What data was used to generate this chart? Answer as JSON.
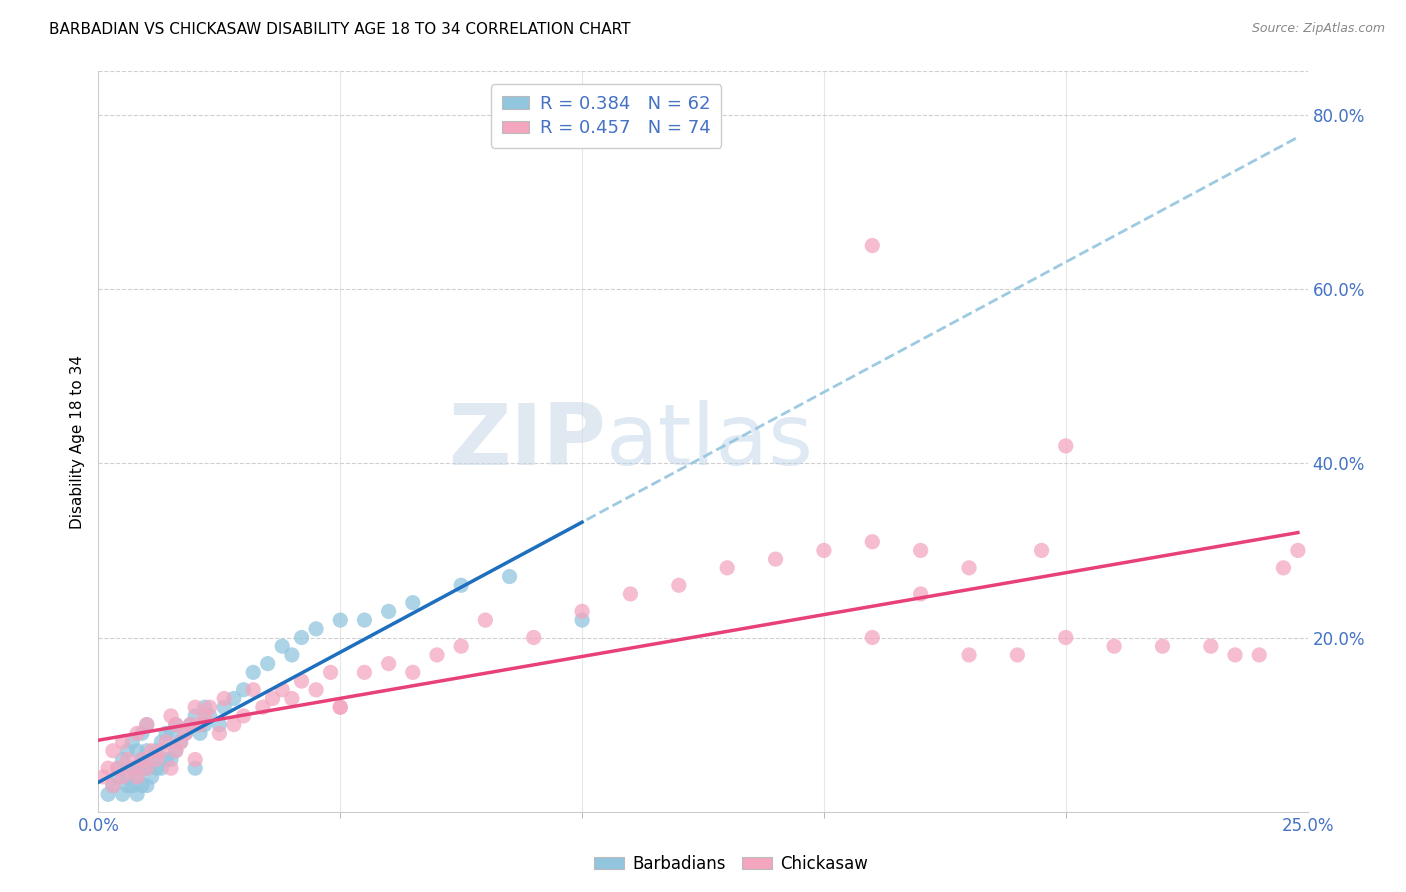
{
  "title": "BARBADIAN VS CHICKASAW DISABILITY AGE 18 TO 34 CORRELATION CHART",
  "source": "Source: ZipAtlas.com",
  "ylabel": "Disability Age 18 to 34",
  "watermark_zip": "ZIP",
  "watermark_atlas": "atlas",
  "xlim": [
    0.0,
    0.25
  ],
  "ylim": [
    0.0,
    0.85
  ],
  "ytick_vals": [
    0.2,
    0.4,
    0.6,
    0.8
  ],
  "ytick_labels": [
    "20.0%",
    "40.0%",
    "60.0%",
    "80.0%"
  ],
  "xtick_vals": [
    0.0,
    0.25
  ],
  "xtick_labels": [
    "0.0%",
    "25.0%"
  ],
  "xtick_minor_vals": [
    0.05,
    0.1,
    0.15,
    0.2
  ],
  "legend_r_barbadian": "0.384",
  "legend_n_barbadian": "62",
  "legend_r_chickasaw": "0.457",
  "legend_n_chickasaw": "74",
  "barbadian_color": "#92c5de",
  "chickasaw_color": "#f4a6bf",
  "barbadian_line_color": "#1f6fbf",
  "chickasaw_line_color": "#e8417a",
  "dashed_line_color": "#92c5de",
  "tick_color": "#4472c4",
  "background_color": "#ffffff",
  "grid_color": "#d0d0d0",
  "barb_x": [
    0.002,
    0.003,
    0.004,
    0.004,
    0.005,
    0.005,
    0.006,
    0.006,
    0.006,
    0.007,
    0.007,
    0.007,
    0.008,
    0.008,
    0.008,
    0.008,
    0.009,
    0.009,
    0.009,
    0.009,
    0.01,
    0.01,
    0.01,
    0.01,
    0.011,
    0.011,
    0.012,
    0.012,
    0.013,
    0.013,
    0.014,
    0.014,
    0.015,
    0.015,
    0.016,
    0.016,
    0.017,
    0.018,
    0.019,
    0.02,
    0.02,
    0.021,
    0.022,
    0.022,
    0.023,
    0.025,
    0.026,
    0.028,
    0.03,
    0.032,
    0.035,
    0.038,
    0.04,
    0.042,
    0.045,
    0.05,
    0.055,
    0.06,
    0.065,
    0.075,
    0.085,
    0.1
  ],
  "barb_y": [
    0.02,
    0.03,
    0.04,
    0.05,
    0.02,
    0.06,
    0.03,
    0.04,
    0.07,
    0.03,
    0.05,
    0.08,
    0.02,
    0.04,
    0.05,
    0.07,
    0.03,
    0.05,
    0.06,
    0.09,
    0.03,
    0.05,
    0.07,
    0.1,
    0.04,
    0.06,
    0.05,
    0.07,
    0.05,
    0.08,
    0.06,
    0.09,
    0.06,
    0.09,
    0.07,
    0.1,
    0.08,
    0.09,
    0.1,
    0.05,
    0.11,
    0.09,
    0.1,
    0.12,
    0.11,
    0.1,
    0.12,
    0.13,
    0.14,
    0.16,
    0.17,
    0.19,
    0.18,
    0.2,
    0.21,
    0.22,
    0.22,
    0.23,
    0.24,
    0.26,
    0.27,
    0.22
  ],
  "chick_x": [
    0.001,
    0.002,
    0.003,
    0.003,
    0.004,
    0.005,
    0.005,
    0.006,
    0.007,
    0.008,
    0.008,
    0.009,
    0.01,
    0.01,
    0.011,
    0.012,
    0.013,
    0.014,
    0.015,
    0.015,
    0.016,
    0.016,
    0.017,
    0.018,
    0.019,
    0.02,
    0.02,
    0.021,
    0.022,
    0.023,
    0.025,
    0.026,
    0.028,
    0.03,
    0.032,
    0.034,
    0.036,
    0.038,
    0.04,
    0.042,
    0.045,
    0.048,
    0.05,
    0.055,
    0.06,
    0.065,
    0.07,
    0.075,
    0.08,
    0.09,
    0.1,
    0.11,
    0.12,
    0.13,
    0.14,
    0.15,
    0.16,
    0.17,
    0.18,
    0.195,
    0.2,
    0.21,
    0.22,
    0.23,
    0.235,
    0.24,
    0.245,
    0.248,
    0.2,
    0.16,
    0.17,
    0.18,
    0.19,
    0.05
  ],
  "chick_y": [
    0.04,
    0.05,
    0.03,
    0.07,
    0.05,
    0.04,
    0.08,
    0.06,
    0.05,
    0.04,
    0.09,
    0.06,
    0.05,
    0.1,
    0.07,
    0.06,
    0.07,
    0.08,
    0.05,
    0.11,
    0.07,
    0.1,
    0.08,
    0.09,
    0.1,
    0.06,
    0.12,
    0.1,
    0.11,
    0.12,
    0.09,
    0.13,
    0.1,
    0.11,
    0.14,
    0.12,
    0.13,
    0.14,
    0.13,
    0.15,
    0.14,
    0.16,
    0.12,
    0.16,
    0.17,
    0.16,
    0.18,
    0.19,
    0.22,
    0.2,
    0.23,
    0.25,
    0.26,
    0.28,
    0.29,
    0.3,
    0.31,
    0.3,
    0.28,
    0.3,
    0.2,
    0.19,
    0.19,
    0.19,
    0.18,
    0.18,
    0.28,
    0.3,
    0.42,
    0.2,
    0.25,
    0.18,
    0.18,
    0.12
  ],
  "chick_outlier_x": [
    0.16
  ],
  "chick_outlier_y": [
    0.65
  ]
}
